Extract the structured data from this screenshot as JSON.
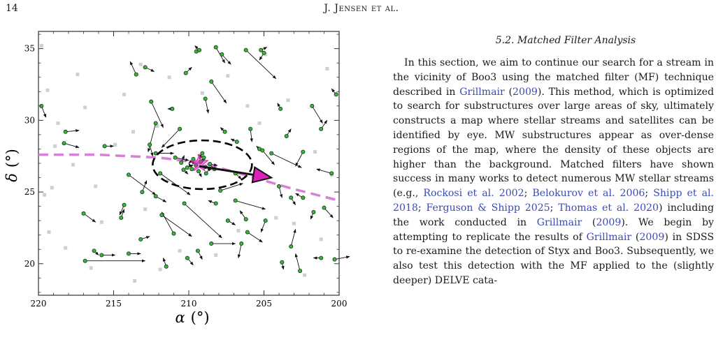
{
  "header": {
    "page_number": "14",
    "running_head_initial": "J. J",
    "running_head_rest": "ensen et al."
  },
  "figure": {
    "x_axis": {
      "label_symbol": "α",
      "label_unit": "(°)",
      "ticks": [
        "220",
        "215",
        "210",
        "205",
        "200"
      ]
    },
    "y_axis": {
      "label_symbol": "δ",
      "label_unit": "(°)",
      "ticks": [
        "20",
        "25",
        "30",
        "35"
      ]
    }
  },
  "chart_data": {
    "type": "scatter",
    "title": "",
    "xlabel": "α (°)",
    "ylabel": "δ (°)",
    "xlim": [
      220,
      200
    ],
    "ylim": [
      17.8,
      36.2
    ],
    "grid": false,
    "colors": {
      "background_points": "#cfcfcf",
      "members": "#3fb13f",
      "stream_track": "#d87fd8",
      "marker": "#dd22bb",
      "ellipse": "#000000"
    },
    "star_marker": {
      "ra": 209.3,
      "dec": 27.0
    },
    "proper_motion_arrow": {
      "from": [
        209.3,
        26.8
      ],
      "to": [
        204.5,
        26.0
      ]
    },
    "half_light_ellipse": {
      "center": [
        209.1,
        26.9
      ],
      "ra_radius": 3.3,
      "dec_radius": 1.7
    },
    "stream_track": [
      [
        220,
        27.6
      ],
      [
        216,
        27.6
      ],
      [
        212,
        27.4
      ],
      [
        209,
        27.0
      ],
      [
        206,
        26.1
      ],
      [
        203,
        25.2
      ],
      [
        200,
        24.4
      ]
    ],
    "background_points": [
      [
        219.8,
        35.2
      ],
      [
        219.4,
        32.1
      ],
      [
        218.7,
        29.8
      ],
      [
        219.1,
        25.3
      ],
      [
        219.6,
        24.8
      ],
      [
        219.3,
        22.2
      ],
      [
        218.2,
        21.1
      ],
      [
        217.4,
        33.2
      ],
      [
        216.9,
        30.9
      ],
      [
        216.2,
        25.4
      ],
      [
        215.8,
        22.9
      ],
      [
        214.3,
        31.8
      ],
      [
        213.7,
        29.2
      ],
      [
        213.2,
        33.9
      ],
      [
        212.1,
        29.6
      ],
      [
        211.3,
        33.0
      ],
      [
        212.9,
        23.8
      ],
      [
        211.9,
        19.6
      ],
      [
        210.6,
        20.9
      ],
      [
        209.1,
        31.9
      ],
      [
        207.4,
        33.1
      ],
      [
        206.1,
        31.0
      ],
      [
        205.3,
        29.8
      ],
      [
        204.2,
        23.2
      ],
      [
        203.4,
        31.4
      ],
      [
        203.0,
        22.8
      ],
      [
        202.3,
        19.2
      ],
      [
        201.6,
        27.8
      ],
      [
        200.8,
        33.6
      ],
      [
        200.5,
        26.2
      ],
      [
        201.2,
        21.7
      ],
      [
        217.7,
        26.9
      ],
      [
        214.9,
        28.3
      ],
      [
        206.7,
        22.3
      ],
      [
        208.2,
        20.6
      ],
      [
        216.5,
        19.7
      ],
      [
        213.6,
        18.8
      ],
      [
        218.9,
        28.2
      ],
      [
        204.9,
        34.6
      ],
      [
        211.4,
        25.8
      ]
    ],
    "stars": [
      {
        "ra": 209.52,
        "dec": 26.86,
        "pm": [
          0.3,
          0.3
        ]
      },
      {
        "ra": 209.2,
        "dec": 27.12,
        "pm": [
          -0.3,
          0.2
        ]
      },
      {
        "ra": 208.9,
        "dec": 26.75,
        "pm": [
          -0.4,
          -0.2
        ]
      },
      {
        "ra": 209.8,
        "dec": 26.6,
        "pm": [
          0.2,
          0.4
        ]
      },
      {
        "ra": 209.35,
        "dec": 26.45,
        "pm": [
          -0.2,
          -0.4
        ]
      },
      {
        "ra": 210.1,
        "dec": 26.7,
        "pm": [
          -0.4,
          0.2
        ]
      },
      {
        "ra": 208.6,
        "dec": 26.95,
        "pm": [
          -0.5,
          -0.1
        ]
      },
      {
        "ra": 209.7,
        "dec": 27.3,
        "pm": [
          0.3,
          -0.3
        ]
      },
      {
        "ra": 210.35,
        "dec": 26.55,
        "pm": [
          -0.3,
          -0.3
        ]
      },
      {
        "ra": 208.3,
        "dec": 26.6,
        "pm": [
          0.4,
          0.4
        ]
      },
      {
        "ra": 209.0,
        "dec": 27.4,
        "pm": [
          0.4,
          0.2
        ]
      },
      {
        "ra": 210.5,
        "dec": 27.05,
        "pm": [
          -0.2,
          0.5
        ]
      },
      {
        "ra": 208.85,
        "dec": 26.3,
        "pm": [
          -0.3,
          0.4
        ]
      },
      {
        "ra": 209.1,
        "dec": 27.7,
        "pm": [
          0.2,
          -0.4
        ]
      },
      {
        "ra": 217.0,
        "dec": 23.5,
        "pm": [
          -0.8,
          -0.6
        ]
      },
      {
        "ra": 219.8,
        "dec": 31.0,
        "pm": [
          -0.3,
          -0.8
        ]
      },
      {
        "ra": 218.2,
        "dec": 29.2,
        "pm": [
          -0.9,
          0.1
        ]
      },
      {
        "ra": 218.3,
        "dec": 28.4,
        "pm": [
          -1.0,
          -0.3
        ]
      },
      {
        "ra": 216.9,
        "dec": 20.2,
        "pm": [
          -4.0,
          0.0
        ]
      },
      {
        "ra": 216.3,
        "dec": 20.9,
        "pm": [
          -0.3,
          -0.3
        ]
      },
      {
        "ra": 215.8,
        "dec": 20.6,
        "pm": [
          -0.9,
          0.0
        ]
      },
      {
        "ra": 215.6,
        "dec": 28.2,
        "pm": [
          -0.6,
          0.0
        ]
      },
      {
        "ra": 214.5,
        "dec": 23.2,
        "pm": [
          -0.2,
          0.6
        ]
      },
      {
        "ra": 214.0,
        "dec": 20.7,
        "pm": [
          -0.8,
          0.0
        ]
      },
      {
        "ra": 214.0,
        "dec": 26.2,
        "pm": [
          -1.8,
          -1.4
        ]
      },
      {
        "ra": 213.5,
        "dec": 33.2,
        "pm": [
          0.4,
          0.9
        ]
      },
      {
        "ra": 212.9,
        "dec": 33.7,
        "pm": [
          -0.6,
          -0.3
        ]
      },
      {
        "ra": 212.5,
        "dec": 31.3,
        "pm": [
          -0.8,
          -1.8
        ]
      },
      {
        "ra": 212.2,
        "dec": 29.8,
        "pm": [
          0.5,
          -2.0
        ]
      },
      {
        "ra": 212.6,
        "dec": 28.3,
        "pm": [
          -0.2,
          -0.8
        ]
      },
      {
        "ra": 212.2,
        "dec": 27.7,
        "pm": [
          -1.2,
          0.0
        ]
      },
      {
        "ra": 211.1,
        "dec": 30.8,
        "pm": [
          0.3,
          0.0
        ]
      },
      {
        "ra": 210.9,
        "dec": 27.4,
        "pm": [
          -0.9,
          -0.2
        ]
      },
      {
        "ra": 210.6,
        "dec": 29.4,
        "pm": [
          1.2,
          -1.3
        ]
      },
      {
        "ra": 210.2,
        "dec": 33.3,
        "pm": [
          -0.4,
          0.4
        ]
      },
      {
        "ra": 209.5,
        "dec": 34.8,
        "pm": [
          -0.2,
          0.2
        ]
      },
      {
        "ra": 209.3,
        "dec": 34.9,
        "pm": [
          0.3,
          0.3
        ]
      },
      {
        "ra": 208.2,
        "dec": 35.1,
        "pm": [
          -0.6,
          -1.1
        ]
      },
      {
        "ra": 207.8,
        "dec": 34.6,
        "pm": [
          -0.6,
          -0.7
        ]
      },
      {
        "ra": 206.2,
        "dec": 34.9,
        "pm": [
          -2.0,
          -2.0
        ]
      },
      {
        "ra": 205.2,
        "dec": 34.9,
        "pm": [
          -0.4,
          0.2
        ]
      },
      {
        "ra": 205.0,
        "dec": 34.7,
        "pm": [
          0.3,
          -0.5
        ]
      },
      {
        "ra": 208.5,
        "dec": 32.7,
        "pm": [
          -1.0,
          -1.5
        ]
      },
      {
        "ra": 208.9,
        "dec": 31.5,
        "pm": [
          -0.2,
          -1.0
        ]
      },
      {
        "ra": 207.6,
        "dec": 29.2,
        "pm": [
          0.3,
          0.3
        ]
      },
      {
        "ra": 206.8,
        "dec": 28.5,
        "pm": [
          0.4,
          0.2
        ]
      },
      {
        "ra": 205.9,
        "dec": 29.4,
        "pm": [
          -0.1,
          -0.9
        ]
      },
      {
        "ra": 205.3,
        "dec": 28.0,
        "pm": [
          0.2,
          0.2
        ]
      },
      {
        "ra": 205.1,
        "dec": 27.9,
        "pm": [
          -0.8,
          -1.0
        ]
      },
      {
        "ra": 204.5,
        "dec": 27.7,
        "pm": [
          -2.0,
          -1.0
        ]
      },
      {
        "ra": 203.9,
        "dec": 30.8,
        "pm": [
          0.2,
          0.4
        ]
      },
      {
        "ra": 203.5,
        "dec": 28.9,
        "pm": [
          -0.3,
          0.5
        ]
      },
      {
        "ra": 202.4,
        "dec": 27.8,
        "pm": [
          0.5,
          -1.0
        ]
      },
      {
        "ra": 201.8,
        "dec": 31.0,
        "pm": [
          -0.7,
          -1.2
        ]
      },
      {
        "ra": 201.2,
        "dec": 29.4,
        "pm": [
          -0.4,
          0.6
        ]
      },
      {
        "ra": 200.2,
        "dec": 31.8,
        "pm": [
          0.3,
          0.4
        ]
      },
      {
        "ra": 200.5,
        "dec": 26.3,
        "pm": [
          1.0,
          0.3
        ]
      },
      {
        "ra": 204.0,
        "dec": 25.4,
        "pm": [
          -0.2,
          -0.8
        ]
      },
      {
        "ra": 203.2,
        "dec": 24.6,
        "pm": [
          -0.3,
          -0.5
        ]
      },
      {
        "ra": 202.4,
        "dec": 24.6,
        "pm": [
          0.5,
          0.3
        ]
      },
      {
        "ra": 201.0,
        "dec": 23.9,
        "pm": [
          -0.6,
          -0.7
        ]
      },
      {
        "ra": 201.7,
        "dec": 23.6,
        "pm": [
          0.2,
          -0.5
        ]
      },
      {
        "ra": 200.3,
        "dec": 20.3,
        "pm": [
          -1.0,
          0.2
        ]
      },
      {
        "ra": 201.2,
        "dec": 20.4,
        "pm": [
          0.5,
          0.0
        ]
      },
      {
        "ra": 202.6,
        "dec": 19.5,
        "pm": [
          0.3,
          1.2
        ]
      },
      {
        "ra": 203.2,
        "dec": 21.2,
        "pm": [
          -0.3,
          1.2
        ]
      },
      {
        "ra": 203.8,
        "dec": 20.1,
        "pm": [
          -0.1,
          -0.5
        ]
      },
      {
        "ra": 204.9,
        "dec": 23.0,
        "pm": [
          0.3,
          -0.8
        ]
      },
      {
        "ra": 206.2,
        "dec": 23.1,
        "pm": [
          0.4,
          0.6
        ]
      },
      {
        "ra": 206.1,
        "dec": 22.2,
        "pm": [
          -1.0,
          -0.7
        ]
      },
      {
        "ra": 206.5,
        "dec": 21.4,
        "pm": [
          0.2,
          -1.0
        ]
      },
      {
        "ra": 206.9,
        "dec": 24.4,
        "pm": [
          -2.0,
          -0.6
        ]
      },
      {
        "ra": 207.4,
        "dec": 23.0,
        "pm": [
          -0.5,
          -0.3
        ]
      },
      {
        "ra": 207.9,
        "dec": 25.1,
        "pm": [
          -1.5,
          0.5
        ]
      },
      {
        "ra": 208.2,
        "dec": 24.2,
        "pm": [
          0.5,
          0.2
        ]
      },
      {
        "ra": 208.5,
        "dec": 21.4,
        "pm": [
          -1.6,
          0.0
        ]
      },
      {
        "ra": 209.4,
        "dec": 20.9,
        "pm": [
          -0.3,
          -0.6
        ]
      },
      {
        "ra": 210.1,
        "dec": 20.4,
        "pm": [
          -0.4,
          -0.5
        ]
      },
      {
        "ra": 210.3,
        "dec": 24.2,
        "pm": [
          -2.5,
          -2.4
        ]
      },
      {
        "ra": 211.0,
        "dec": 22.1,
        "pm": [
          0.8,
          1.5
        ]
      },
      {
        "ra": 211.8,
        "dec": 23.4,
        "pm": [
          -2.0,
          -1.5
        ]
      },
      {
        "ra": 212.2,
        "dec": 24.7,
        "pm": [
          -0.7,
          -0.4
        ]
      },
      {
        "ra": 213.1,
        "dec": 25.0,
        "pm": [
          -0.3,
          0.8
        ]
      },
      {
        "ra": 214.3,
        "dec": 24.1,
        "pm": [
          0.3,
          -0.7
        ]
      },
      {
        "ra": 211.5,
        "dec": 19.8,
        "pm": [
          0.2,
          0.6
        ]
      },
      {
        "ra": 213.2,
        "dec": 21.7,
        "pm": [
          -0.6,
          0.2
        ]
      },
      {
        "ra": 211.9,
        "dec": 26.3,
        "pm": [
          -2.0,
          -1.5
        ]
      },
      {
        "ra": 206.9,
        "dec": 26.3,
        "pm": [
          -0.4,
          -0.4
        ]
      }
    ]
  },
  "section": {
    "heading": "5.2. Matched Filter Analysis"
  },
  "paragraph": {
    "p1": "In this section, we aim to continue our search for a stream in the vicinity of Boo3 using the matched filter (MF) technique described in ",
    "c1": "Grillmair",
    "p2": " (",
    "c2": "2009",
    "p3": "). This method, which is optimized to search for substructures over large areas of sky, ultimately constructs a map where stellar streams and satellites can be identified by eye. MW substructures appear as over-dense regions of the map, where the density of these objects are higher than the background. Matched filters have shown success in many works to detect numerous MW stellar streams (e.g., ",
    "c3": "Rockosi et al. 2002",
    "p4": "; ",
    "c4": "Belokurov et al. 2006",
    "p5": "; ",
    "c5": "Shipp et al. 2018",
    "p6": "; ",
    "c6": "Ferguson & Shipp 2025",
    "p7": "; ",
    "c7": "Thomas et al. 2020",
    "p8": ") including the work conducted in ",
    "c8": "Grillmair",
    "p9": " (",
    "c9": "2009",
    "p10": "). We begin by attempting to replicate the results of ",
    "c10": "Grillmair",
    "p11": " (",
    "c11": "2009",
    "p12": ") in SDSS to re-examine the detection of Styx and Boo3. Subsequently, we also test this detection with the MF applied to the (slightly deeper) DELVE cata-"
  }
}
